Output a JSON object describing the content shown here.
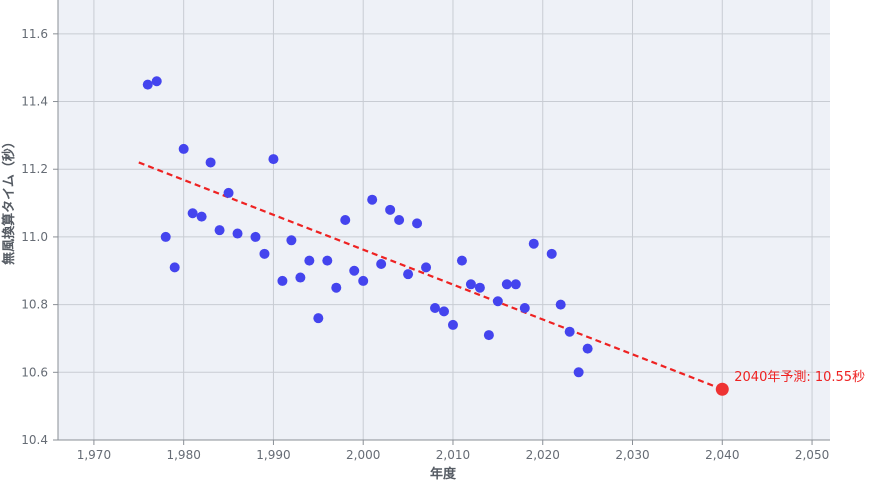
{
  "chart_data": {
    "type": "scatter",
    "title": "",
    "xlabel": "年度",
    "ylabel": "無風換算タイム（秒）",
    "xlim": [
      1966,
      2052
    ],
    "ylim": [
      10.4,
      11.7
    ],
    "xticks": [
      1970,
      1980,
      1990,
      2000,
      2010,
      2020,
      2030,
      2040,
      2050
    ],
    "xtick_labels": [
      "1,970",
      "1,980",
      "1,990",
      "2,000",
      "2,010",
      "2,020",
      "2,030",
      "2,040",
      "2,050"
    ],
    "yticks": [
      10.4,
      10.6,
      10.8,
      11.0,
      11.2,
      11.4,
      11.6
    ],
    "ytick_labels": [
      "10.4",
      "10.6",
      "10.8",
      "11.0",
      "11.2",
      "11.4",
      "11.6"
    ],
    "grid": true,
    "series": [
      {
        "kind": "scatter",
        "color": "#4444ee",
        "points": [
          [
            1976,
            11.45
          ],
          [
            1977,
            11.46
          ],
          [
            1978,
            11.0
          ],
          [
            1979,
            10.91
          ],
          [
            1980,
            11.26
          ],
          [
            1981,
            11.07
          ],
          [
            1982,
            11.06
          ],
          [
            1983,
            11.22
          ],
          [
            1984,
            11.02
          ],
          [
            1985,
            11.13
          ],
          [
            1986,
            11.01
          ],
          [
            1988,
            11.0
          ],
          [
            1989,
            10.95
          ],
          [
            1990,
            11.23
          ],
          [
            1991,
            10.87
          ],
          [
            1992,
            10.99
          ],
          [
            1993,
            10.88
          ],
          [
            1994,
            10.93
          ],
          [
            1995,
            10.76
          ],
          [
            1996,
            10.93
          ],
          [
            1997,
            10.85
          ],
          [
            1998,
            11.05
          ],
          [
            1999,
            10.9
          ],
          [
            2000,
            10.87
          ],
          [
            2001,
            11.11
          ],
          [
            2002,
            10.92
          ],
          [
            2003,
            11.08
          ],
          [
            2004,
            11.05
          ],
          [
            2005,
            10.89
          ],
          [
            2006,
            11.04
          ],
          [
            2007,
            10.91
          ],
          [
            2008,
            10.79
          ],
          [
            2009,
            10.78
          ],
          [
            2010,
            10.74
          ],
          [
            2011,
            10.93
          ],
          [
            2012,
            10.86
          ],
          [
            2013,
            10.85
          ],
          [
            2014,
            10.71
          ],
          [
            2015,
            10.81
          ],
          [
            2016,
            10.86
          ],
          [
            2017,
            10.86
          ],
          [
            2018,
            10.79
          ],
          [
            2019,
            10.98
          ],
          [
            2021,
            10.95
          ],
          [
            2022,
            10.8
          ],
          [
            2023,
            10.72
          ],
          [
            2024,
            10.6
          ],
          [
            2025,
            10.67
          ]
        ]
      },
      {
        "kind": "trend-line",
        "style": "dashed",
        "color": "#ee2222",
        "points": [
          [
            1975,
            11.22
          ],
          [
            2040,
            10.55
          ]
        ]
      },
      {
        "kind": "prediction",
        "color": "#ee3333",
        "points": [
          [
            2040,
            10.55
          ]
        ]
      }
    ],
    "annotations": [
      {
        "text": "2040年予測: 10.55秒",
        "x": 2040,
        "y": 10.55
      }
    ]
  },
  "colors": {
    "plot_background": "#eef1f7",
    "grid": "#c8ccd3",
    "axis": "#8a8f96"
  }
}
